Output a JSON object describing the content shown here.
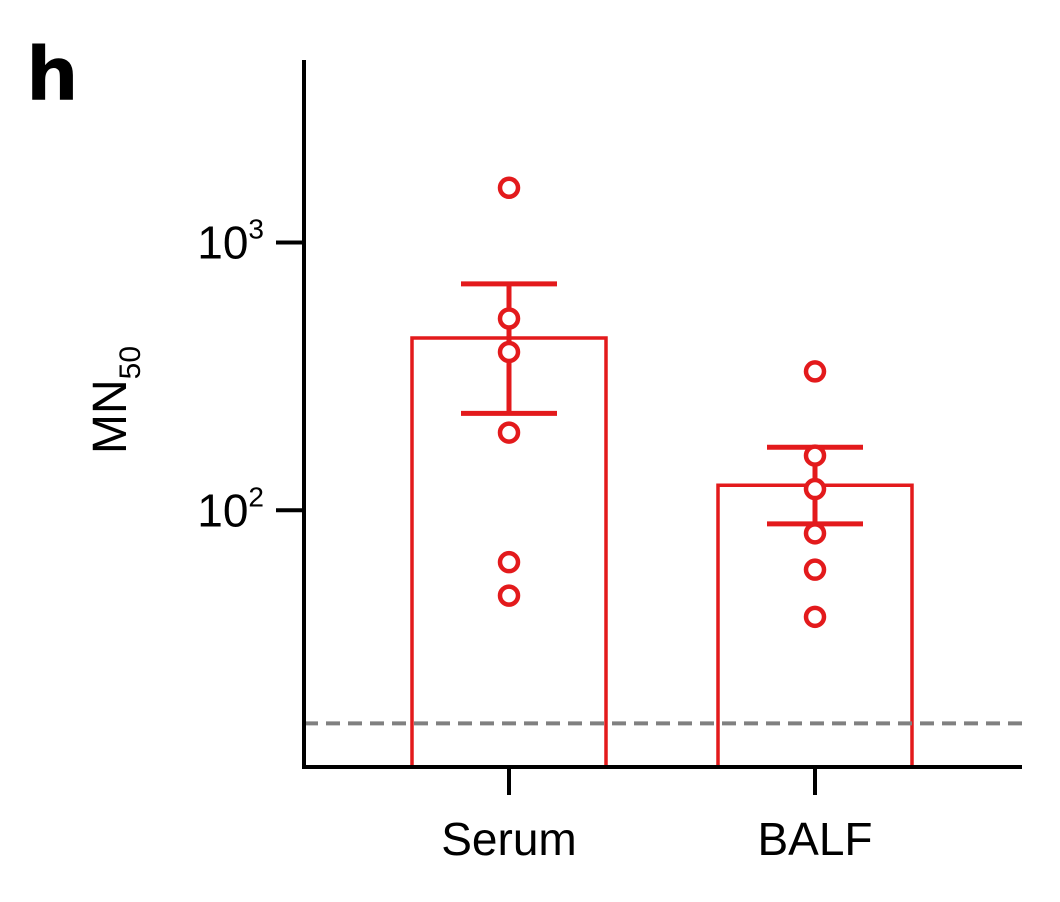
{
  "panel_label": "h",
  "chart_data": {
    "type": "bar",
    "ylabel": "MN",
    "ylabel_subscript": "50",
    "yscale": "log",
    "ylim": [
      11,
      4800
    ],
    "yticks": [
      {
        "value": 100,
        "base": "10",
        "exp": "2"
      },
      {
        "value": 1000,
        "base": "10",
        "exp": "3"
      }
    ],
    "categories": [
      "Serum",
      "BALF"
    ],
    "bars": [
      {
        "category": "Serum",
        "mean": 440,
        "error_low": 230,
        "error_high": 700,
        "points": [
          1600,
          520,
          390,
          195,
          64,
          48
        ]
      },
      {
        "category": "BALF",
        "mean": 124,
        "error_low": 89,
        "error_high": 172,
        "points": [
          330,
          160,
          120,
          82,
          60,
          40
        ]
      }
    ],
    "reference_line": 16,
    "colors": {
      "series": "#e31a1c",
      "reference": "#808080",
      "axis": "#000000"
    }
  }
}
